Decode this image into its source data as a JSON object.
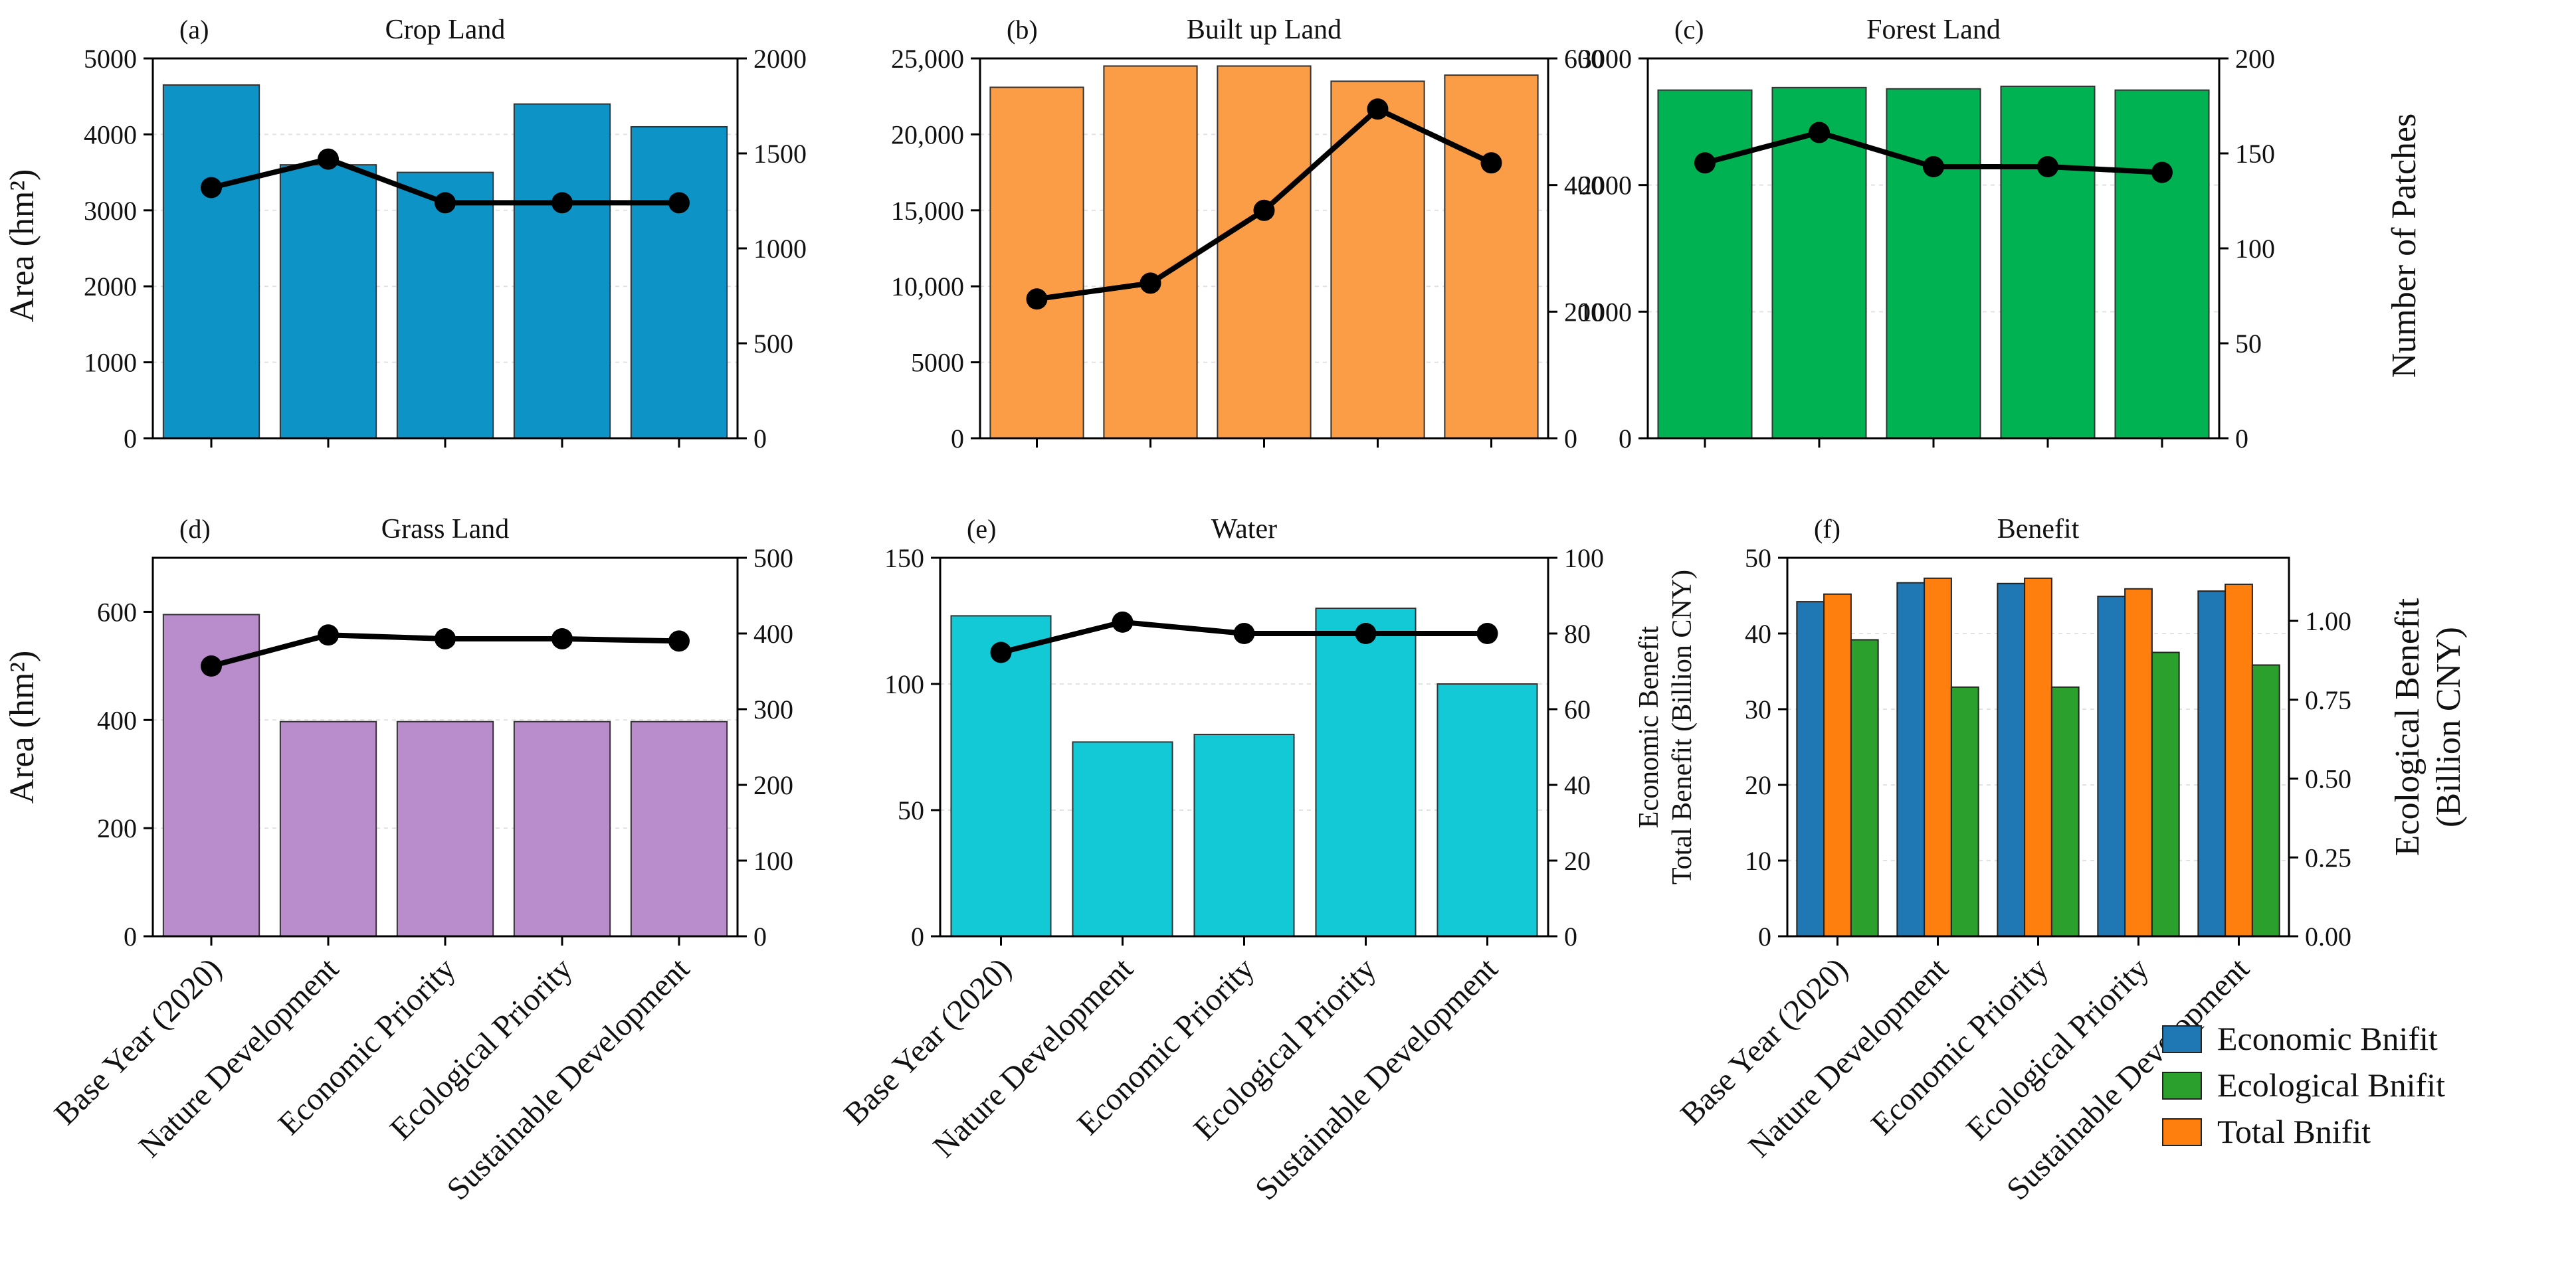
{
  "categories": [
    "Base Year (2020)",
    "Nature Development",
    "Economic Priority",
    "Ecological Priority",
    "Sustainable Development"
  ],
  "left_axis_title": "Area (hm²)",
  "right_axis_title": "Number of Patches",
  "benefit_left_axis_title": [
    "Economic Benefit",
    "Total Benefit (Billion CNY)"
  ],
  "benefit_right_axis_title": [
    "Ecological Benefit",
    "(Billion CNY)"
  ],
  "legend": [
    {
      "label": "Economic Bnifit",
      "color": "#1f77b4"
    },
    {
      "label": "Ecological Bnifit",
      "color": "#2ca02c"
    },
    {
      "label": "Total Bnifit",
      "color": "#ff7f0e"
    }
  ],
  "chart_data": [
    {
      "id": "a",
      "type": "bar+line",
      "label": "(a)",
      "title": "Crop Land",
      "color": "#0d93c6",
      "ylabel": "Area (hm²)",
      "ylim": [
        0,
        5000
      ],
      "yticks": [
        0,
        1000,
        2000,
        3000,
        4000,
        5000
      ],
      "ytick_labels": [
        "0",
        "1000",
        "2000",
        "3000",
        "4000",
        "5000"
      ],
      "y2label": "",
      "y2lim": [
        0,
        2000
      ],
      "y2ticks": [
        0,
        500,
        1000,
        1500,
        2000
      ],
      "y2tick_labels": [
        "0",
        "500",
        "1000",
        "1500",
        "2000"
      ],
      "bar_values": [
        4650,
        3600,
        3500,
        4400,
        4100
      ],
      "line_values": [
        1320,
        1470,
        1240,
        1240,
        1240
      ]
    },
    {
      "id": "b",
      "type": "bar+line",
      "label": "(b)",
      "title": "Built up Land",
      "color": "#fb9d47",
      "ylabel": "",
      "ylim": [
        0,
        25000
      ],
      "yticks": [
        0,
        5000,
        10000,
        15000,
        20000,
        25000
      ],
      "ytick_labels": [
        "0",
        "5000",
        "10,000",
        "15,000",
        "20,000",
        "25,000"
      ],
      "y2label": "",
      "y2lim": [
        0,
        600
      ],
      "y2ticks": [
        0,
        200,
        400,
        600
      ],
      "y2tick_labels": [
        "0",
        "200",
        "400",
        "600"
      ],
      "bar_values": [
        23100,
        24500,
        24500,
        23500,
        23900
      ],
      "line_values": [
        220,
        245,
        360,
        520,
        435
      ]
    },
    {
      "id": "c",
      "type": "bar+line",
      "label": "(c)",
      "title": "Forest Land",
      "color": "#00b252",
      "ylabel": "",
      "ylim": [
        0,
        3000
      ],
      "yticks": [
        0,
        1000,
        2000,
        3000
      ],
      "ytick_labels": [
        "0",
        "1000",
        "2000",
        "3000"
      ],
      "y2label": "Number of Patches",
      "y2lim": [
        0,
        200
      ],
      "y2ticks": [
        0,
        50,
        100,
        150,
        200
      ],
      "y2tick_labels": [
        "0",
        "50",
        "100",
        "150",
        "200"
      ],
      "bar_values": [
        2750,
        2770,
        2760,
        2780,
        2750
      ],
      "line_values": [
        145,
        161,
        143,
        143,
        140
      ]
    },
    {
      "id": "d",
      "type": "bar+line",
      "label": "(d)",
      "title": "Grass Land",
      "color": "#b98ccc",
      "ylabel": "Area (hm²)",
      "ylim": [
        0,
        700
      ],
      "yticks": [
        0,
        200,
        400,
        600
      ],
      "ytick_labels": [
        "0",
        "200",
        "400",
        "600"
      ],
      "y2label": "",
      "y2lim": [
        0,
        500
      ],
      "y2ticks": [
        0,
        100,
        200,
        300,
        400,
        500
      ],
      "y2tick_labels": [
        "0",
        "100",
        "200",
        "300",
        "400",
        "500"
      ],
      "bar_values": [
        595,
        397,
        397,
        397,
        397
      ],
      "line_values": [
        357,
        398,
        393,
        393,
        390
      ]
    },
    {
      "id": "e",
      "type": "bar+line",
      "label": "(e)",
      "title": "Water",
      "color": "#14c9d6",
      "ylabel": "",
      "ylim": [
        0,
        150
      ],
      "yticks": [
        0,
        50,
        100,
        150
      ],
      "ytick_labels": [
        "0",
        "50",
        "100",
        "150"
      ],
      "y2label": "",
      "y2lim": [
        0,
        100
      ],
      "y2ticks": [
        0,
        20,
        40,
        60,
        80,
        100
      ],
      "y2tick_labels": [
        "0",
        "20",
        "40",
        "60",
        "80",
        "100"
      ],
      "bar_values": [
        127,
        77,
        80,
        130,
        100
      ],
      "line_values": [
        75,
        83,
        80,
        80,
        80
      ]
    },
    {
      "id": "f",
      "type": "grouped-bar",
      "label": "(f)",
      "title": "Benefit",
      "ylabel": "Economic Benefit / Total Benefit (Billion CNY)",
      "ylim": [
        0,
        50
      ],
      "yticks": [
        0,
        10,
        20,
        30,
        40,
        50
      ],
      "ytick_labels": [
        "0",
        "10",
        "20",
        "30",
        "40",
        "50"
      ],
      "y2label": "Ecological Benefit (Billion CNY)",
      "y2lim": [
        0,
        1.2
      ],
      "y2ticks": [
        0,
        0.25,
        0.5,
        0.75,
        1.0
      ],
      "y2tick_labels": [
        "0.00",
        "0.25",
        "0.50",
        "0.75",
        "1.00"
      ],
      "series": [
        {
          "name": "Economic Bnifit",
          "axis": "left",
          "color": "#1f77b4",
          "values": [
            44.2,
            46.7,
            46.6,
            44.9,
            45.6
          ]
        },
        {
          "name": "Total Bnifit",
          "axis": "left",
          "color": "#ff7f0e",
          "values": [
            45.2,
            47.3,
            47.3,
            45.9,
            46.5
          ]
        },
        {
          "name": "Ecological Bnifit",
          "axis": "right",
          "color": "#2ca02c",
          "values": [
            0.94,
            0.79,
            0.79,
            0.9,
            0.86
          ]
        }
      ]
    }
  ]
}
